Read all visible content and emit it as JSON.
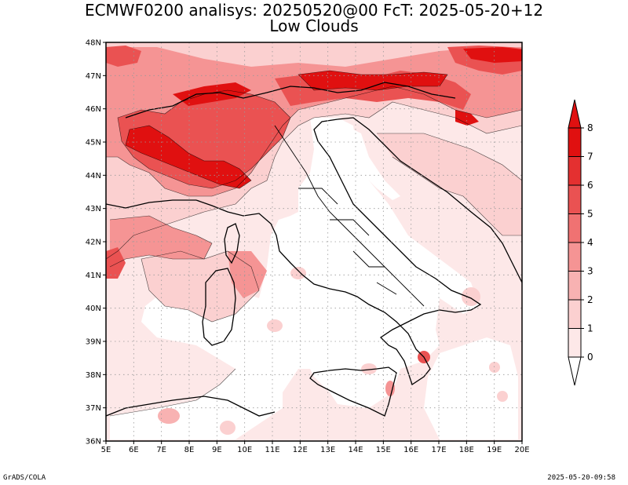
{
  "header": {
    "title": "ECMWF0200 analisys: 20250520@00 FcT: 2025-05-20+12",
    "subtitle": "Low Clouds"
  },
  "footer": {
    "left": "GrADS/COLA",
    "right": "2025-05-20-09:58"
  },
  "colors": {
    "level_0": "#ffffff",
    "level_1": "#fde8e8",
    "level_2": "#fbd0d0",
    "level_3": "#f8b2b2",
    "level_4": "#f59494",
    "level_5": "#f07272",
    "level_6": "#ea5252",
    "level_7": "#e43030",
    "level_8": "#e01010"
  },
  "chart_data": {
    "type": "heatmap",
    "title": "ECMWF0200 analisys: 20250520@00 FcT: 2025-05-20+12",
    "subtitle": "Low Clouds",
    "xlim": [
      5,
      20
    ],
    "ylim": [
      36,
      48
    ],
    "x_ticks": [
      "5E",
      "6E",
      "7E",
      "8E",
      "9E",
      "10E",
      "11E",
      "12E",
      "13E",
      "14E",
      "15E",
      "16E",
      "17E",
      "18E",
      "19E",
      "20E"
    ],
    "y_ticks": [
      "36N",
      "37N",
      "38N",
      "39N",
      "40N",
      "41N",
      "42N",
      "43N",
      "44N",
      "45N",
      "46N",
      "47N",
      "48N"
    ],
    "grid": true,
    "colorbar": {
      "levels": [
        "0",
        "1",
        "2",
        "3",
        "4",
        "5",
        "6",
        "7",
        "8"
      ],
      "colors": [
        "#ffffff",
        "#fde8e8",
        "#fbd0d0",
        "#f8b2b2",
        "#f59494",
        "#f07272",
        "#ea5252",
        "#e43030",
        "#e01010"
      ],
      "placement": "right"
    }
  }
}
